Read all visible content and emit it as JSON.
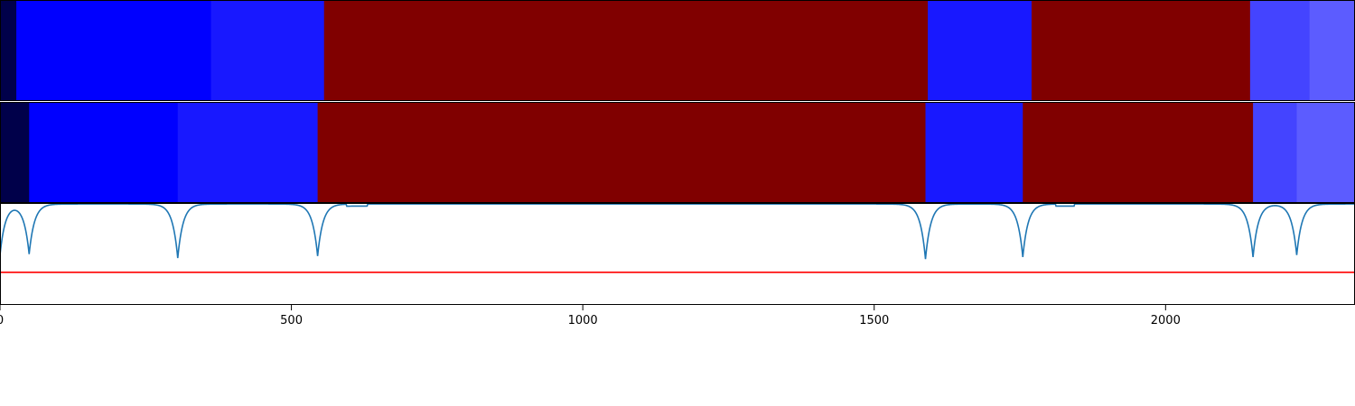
{
  "chart_data": {
    "type": "heatmap",
    "x_range": [
      0,
      2325
    ],
    "x_ticks": [
      "0",
      "500",
      "1000",
      "1500",
      "2000"
    ],
    "x_tick_values": [
      0,
      500,
      1000,
      1500,
      2000
    ],
    "rows": [
      {
        "segments": [
          {
            "start": 0,
            "end": 28,
            "color": "#00004a"
          },
          {
            "start": 28,
            "end": 362,
            "color": "#0000ff"
          },
          {
            "start": 362,
            "end": 556,
            "color": "#1818ff"
          },
          {
            "start": 556,
            "end": 1592,
            "color": "#800000"
          },
          {
            "start": 1592,
            "end": 1770,
            "color": "#1818ff"
          },
          {
            "start": 1770,
            "end": 2145,
            "color": "#800000"
          },
          {
            "start": 2145,
            "end": 2247,
            "color": "#4444ff"
          },
          {
            "start": 2247,
            "end": 2325,
            "color": "#5c5cff"
          }
        ]
      },
      {
        "segments": [
          {
            "start": 0,
            "end": 50,
            "color": "#00004a"
          },
          {
            "start": 50,
            "end": 305,
            "color": "#0000ff"
          },
          {
            "start": 305,
            "end": 545,
            "color": "#1818ff"
          },
          {
            "start": 545,
            "end": 1588,
            "color": "#800000"
          },
          {
            "start": 1588,
            "end": 1755,
            "color": "#1818ff"
          },
          {
            "start": 1755,
            "end": 2150,
            "color": "#800000"
          },
          {
            "start": 2150,
            "end": 2225,
            "color": "#4444ff"
          },
          {
            "start": 2225,
            "end": 2325,
            "color": "#5c5cff"
          }
        ]
      }
    ],
    "line_panel": {
      "y_range": [
        0,
        1
      ],
      "threshold": 0.32,
      "threshold_color": "#ff0000",
      "line_color": "#1f77b4",
      "baseline": 0.99,
      "dips": [
        {
          "x": 0,
          "depth": 0.5
        },
        {
          "x": 50,
          "depth": 0.49
        },
        {
          "x": 305,
          "depth": 0.53
        },
        {
          "x": 545,
          "depth": 0.51
        },
        {
          "x": 1588,
          "depth": 0.54
        },
        {
          "x": 1755,
          "depth": 0.52
        },
        {
          "x": 2150,
          "depth": 0.52
        },
        {
          "x": 2225,
          "depth": 0.5
        }
      ],
      "steps": [
        {
          "start": 595,
          "end": 630,
          "value": 0.97
        },
        {
          "start": 1812,
          "end": 1843,
          "value": 0.97
        }
      ]
    }
  }
}
